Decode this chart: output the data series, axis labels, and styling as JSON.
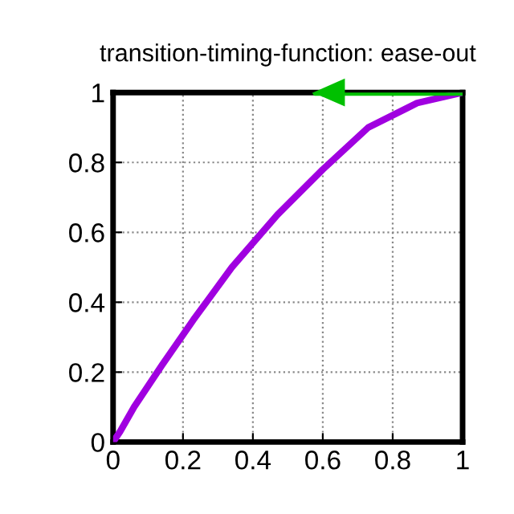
{
  "chart_data": {
    "type": "line",
    "title": "transition-timing-function: ease-out",
    "series": [
      {
        "color": "#a000e0",
        "x": [
          0,
          0.02,
          0.06,
          0.14,
          0.23,
          0.34,
          0.47,
          0.6,
          0.73,
          0.87,
          1
        ],
        "values": [
          0,
          0.03,
          0.1,
          0.22,
          0.35,
          0.5,
          0.65,
          0.78,
          0.9,
          0.97,
          1
        ]
      },
      {
        "color": "#00c000",
        "x": [
          1,
          0.58
        ],
        "values": [
          1,
          1
        ]
      }
    ],
    "xlim": [
      0,
      1
    ],
    "ylim": [
      0,
      1
    ],
    "xticks": [
      0,
      0.2,
      0.4,
      0.6,
      0.8,
      1
    ],
    "yticks": [
      0,
      0.2,
      0.4,
      0.6,
      0.8,
      1
    ],
    "grid": true,
    "line_style": "solid"
  }
}
